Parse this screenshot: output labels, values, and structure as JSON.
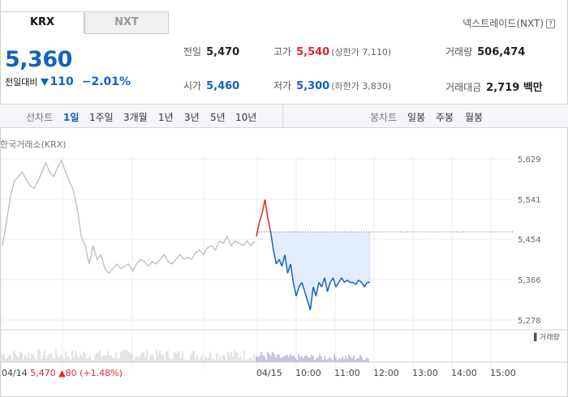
{
  "tabs": [
    {
      "label": "KRX",
      "active": true
    },
    {
      "label": "NXT",
      "active": false
    }
  ],
  "nxt_link": "넥스트레이드(NXT)",
  "nxt_help": "?",
  "price": {
    "current": "5,360",
    "change_label": "전일대비",
    "change": "110",
    "change_pct": "−2.01%"
  },
  "stats": {
    "prev_close": {
      "label": "전일",
      "value": "5,470"
    },
    "high": {
      "label": "고가",
      "value": "5,540",
      "sub": "(상한가 7,110)"
    },
    "volume": {
      "label": "거래량",
      "value": "506,474"
    },
    "open": {
      "label": "시가",
      "value": "5,460"
    },
    "low": {
      "label": "저가",
      "value": "5,300",
      "sub": "(하한가 3,830)"
    },
    "trade_value": {
      "label": "거래대금",
      "value": "2,719 백만"
    }
  },
  "toolbar": {
    "line_chart_label": "선차트",
    "periods": [
      "1일",
      "1주일",
      "3개월",
      "1년",
      "3년",
      "5년",
      "10년"
    ],
    "selected_period": "1일",
    "candle_label": "봉차트",
    "candle_periods": [
      "일봉",
      "주봉",
      "월봉"
    ]
  },
  "exchange_label": "한국거래소(KRX)",
  "colors": {
    "up": "#e0262f",
    "down": "#1261c4",
    "prev_line": "#bbbbbb",
    "volume": "#9b86c9"
  },
  "chart_data": {
    "type": "line",
    "y_ticks": [
      "5,629",
      "5,541",
      "5,454",
      "5,366",
      "5,278"
    ],
    "ylim": [
      5278,
      5629
    ],
    "x_ticks_prev": [
      "04/14"
    ],
    "x_ticks_today": [
      "04/15",
      "10:00",
      "11:00",
      "12:00",
      "13:00",
      "14:00",
      "15:00"
    ],
    "prev_day_footer": {
      "date": "04/14",
      "close": "5,470",
      "arrow": "▲",
      "change": "80",
      "pct": "(+1.48%)"
    },
    "reference_line": 5470,
    "volume_legend": "거래량",
    "series": [
      {
        "x_prev": [
          0,
          1,
          2,
          3,
          4,
          5,
          6,
          7,
          8,
          9,
          10,
          11,
          12,
          13,
          14,
          15,
          16,
          17,
          18,
          19,
          20,
          21,
          22,
          23,
          24,
          25,
          26,
          27,
          28,
          29,
          30,
          31,
          32,
          33,
          34,
          35,
          36,
          37,
          38,
          39,
          40,
          41,
          42,
          43,
          44,
          45,
          46,
          47,
          48,
          49,
          50,
          51,
          52,
          53,
          54,
          55,
          56,
          57,
          58,
          59,
          60,
          61,
          62,
          63,
          64
        ],
        "values_prev": [
          5440,
          5490,
          5545,
          5580,
          5590,
          5600,
          5585,
          5570,
          5565,
          5580,
          5600,
          5620,
          5600,
          5590,
          5610,
          5625,
          5600,
          5580,
          5560,
          5520,
          5460,
          5440,
          5400,
          5440,
          5410,
          5420,
          5390,
          5380,
          5390,
          5400,
          5390,
          5395,
          5400,
          5385,
          5400,
          5410,
          5405,
          5395,
          5405,
          5400,
          5410,
          5420,
          5405,
          5400,
          5410,
          5420,
          5410,
          5415,
          5410,
          5425,
          5430,
          5420,
          5435,
          5440,
          5430,
          5450,
          5445,
          5460,
          5440,
          5450,
          5445,
          5440,
          5450,
          5440,
          5450
        ]
      },
      {
        "x_today": [
          "09:00",
          "09:02",
          "09:04",
          "09:06",
          "09:08",
          "09:10",
          "09:12",
          "09:14",
          "09:16",
          "09:18",
          "09:20",
          "09:25",
          "09:30",
          "09:35",
          "09:40",
          "09:45",
          "09:50",
          "09:55",
          "10:00",
          "10:05",
          "10:10",
          "10:15",
          "10:20",
          "10:25",
          "10:30",
          "10:35",
          "10:40",
          "10:45",
          "10:50",
          "10:55",
          "11:00",
          "11:05",
          "11:10",
          "11:15",
          "11:20",
          "11:25",
          "11:30",
          "11:35",
          "11:40",
          "11:45",
          "11:50"
        ],
        "values_today": [
          5460,
          5490,
          5510,
          5540,
          5500,
          5470,
          5430,
          5400,
          5410,
          5395,
          5420,
          5380,
          5400,
          5360,
          5330,
          5350,
          5360,
          5340,
          5320,
          5300,
          5350,
          5330,
          5360,
          5350,
          5370,
          5340,
          5360,
          5370,
          5350,
          5360,
          5370,
          5360,
          5365,
          5360,
          5360,
          5355,
          5365,
          5360,
          5350,
          5360,
          5360
        ]
      }
    ]
  }
}
